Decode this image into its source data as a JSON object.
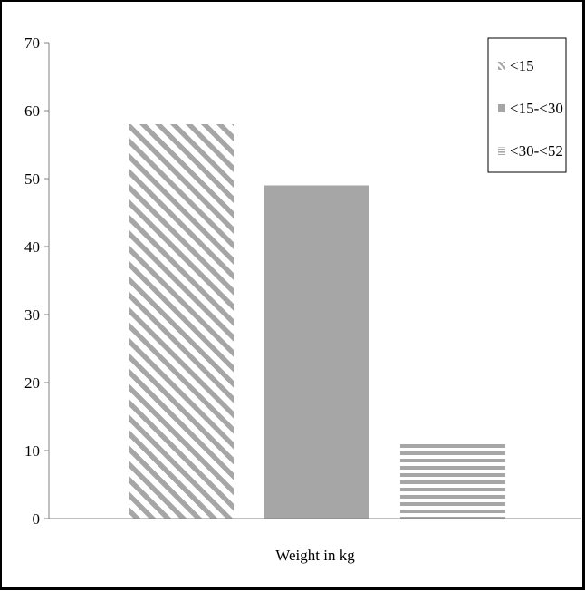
{
  "chart_data": {
    "type": "bar",
    "title": "",
    "xlabel": "Weight in kg",
    "ylabel": "",
    "ylim": [
      0,
      70
    ],
    "yticks": [
      0,
      10,
      20,
      30,
      40,
      50,
      60,
      70
    ],
    "grid": false,
    "legend_position": "top-right",
    "series": [
      {
        "name": "<15",
        "value": 58,
        "pattern": "diagonal-stripes"
      },
      {
        "name": "<15-<30",
        "value": 49,
        "pattern": "solid"
      },
      {
        "name": "<30-<52",
        "value": 11,
        "pattern": "horizontal-stripes"
      }
    ],
    "colors": {
      "bar": "#a6a6a6",
      "axis": "#808080",
      "frame": "#000000"
    }
  }
}
